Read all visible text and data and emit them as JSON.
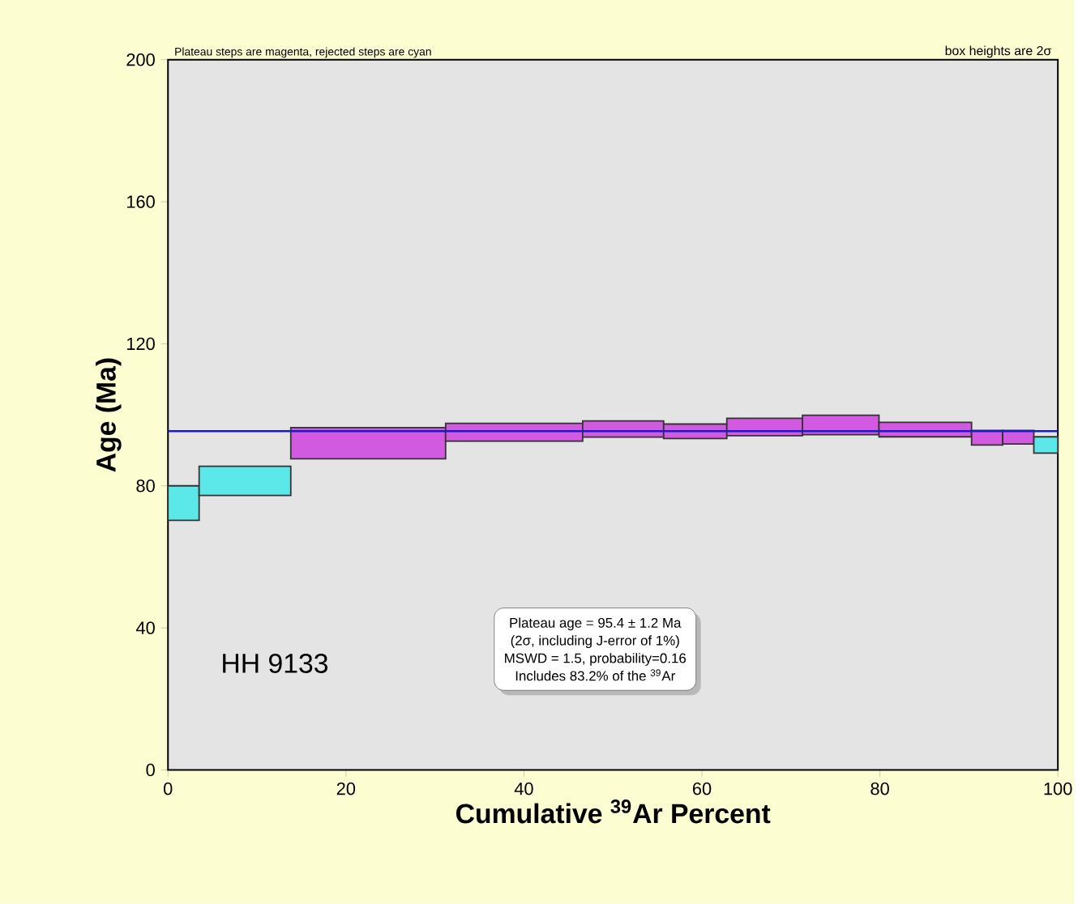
{
  "chart_data": {
    "type": "bar",
    "xlabel": "Cumulative $^{39}$Ar Percent",
    "ylabel": "Age (Ma)",
    "x": [
      1.75,
      8.65,
      22.5,
      38.9,
      51.15,
      59.25,
      67.05,
      75.6,
      85.1,
      92.05,
      95.55,
      98.65
    ],
    "base": [
      70.3,
      77.3,
      87.6,
      92.6,
      93.7,
      93.3,
      94.1,
      94.4,
      93.8,
      91.5,
      91.8,
      89.2
    ],
    "values": [
      9.7,
      8.2,
      8.8,
      5.0,
      4.6,
      4.1,
      4.9,
      5.5,
      4.1,
      4.1,
      3.8,
      4.6
    ],
    "colors": [
      "#5ce8e8",
      "#5ce8e8",
      "#d25ae0",
      "#d25ae0",
      "#d25ae0",
      "#d25ae0",
      "#d25ae0",
      "#d25ae0",
      "#d25ae0",
      "#d25ae0",
      "#d25ae0",
      "#5ce8e8"
    ],
    "xlim": [
      0,
      100
    ],
    "xticks": [
      0,
      20,
      40,
      60,
      80,
      100
    ],
    "ylim": [
      0,
      200
    ],
    "yticks": [
      0,
      40,
      80,
      120,
      160,
      200
    ],
    "ref_lines": [
      {
        "axis": "y",
        "value": 95.4,
        "color": "#1a1acc"
      }
    ],
    "annotations": [
      "Plateau steps are magenta, rejected steps are cyan",
      "box heights are 2σ",
      "HH 9133",
      "Plateau age = 95.4 ± 1.2 Ma",
      "(2σ, including J-error of 1%)",
      "MSWD = 1.5, probability=0.16",
      "Includes 83.2% of the $^{39}$Ar"
    ]
  }
}
